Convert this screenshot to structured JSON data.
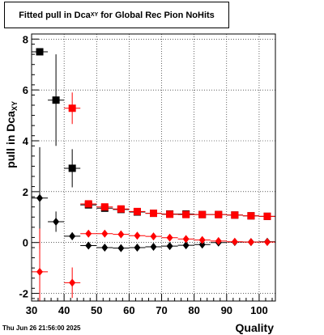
{
  "chart_data": {
    "type": "scatter",
    "title_main": "Fitted pull in Dca",
    "title_sub": "XY",
    "title_rest": "for Global Rec Pion NoHits",
    "xlabel": "Quality",
    "ylabel_main": "pull in Dca",
    "ylabel_sub": "XY",
    "xlim": [
      30,
      105
    ],
    "ylim": [
      -2.3,
      8.2
    ],
    "grid": true,
    "x_ticks": [
      30,
      40,
      50,
      60,
      70,
      80,
      90,
      100
    ],
    "y_ticks": [
      -2,
      0,
      2,
      4,
      6,
      8
    ],
    "series": [
      {
        "marker": "square",
        "color": "#000000",
        "points": [
          {
            "x": 32.5,
            "y": 7.5,
            "yerr": 0.0,
            "xerr": 2.5
          },
          {
            "x": 37.5,
            "y": 5.6,
            "yerr": 1.8,
            "xerr": 2.5
          },
          {
            "x": 42.5,
            "y": 2.92,
            "yerr": 0.75,
            "xerr": 2.5
          },
          {
            "x": 47.5,
            "y": 1.48,
            "yerr": 0.12,
            "xerr": 2.5
          },
          {
            "x": 52.5,
            "y": 1.35,
            "yerr": 0.08,
            "xerr": 2.5
          },
          {
            "x": 57.5,
            "y": 1.3,
            "yerr": 0.06,
            "xerr": 2.5
          },
          {
            "x": 62.5,
            "y": 1.2,
            "yerr": 0.05,
            "xerr": 2.5
          },
          {
            "x": 67.5,
            "y": 1.15,
            "yerr": 0.05,
            "xerr": 2.5
          },
          {
            "x": 72.5,
            "y": 1.12,
            "yerr": 0.05,
            "xerr": 2.5
          },
          {
            "x": 77.5,
            "y": 1.12,
            "yerr": 0.05,
            "xerr": 2.5
          },
          {
            "x": 82.5,
            "y": 1.1,
            "yerr": 0.05,
            "xerr": 2.5
          },
          {
            "x": 87.5,
            "y": 1.1,
            "yerr": 0.05,
            "xerr": 2.5
          },
          {
            "x": 92.5,
            "y": 1.08,
            "yerr": 0.05,
            "xerr": 2.5
          },
          {
            "x": 97.5,
            "y": 1.05,
            "yerr": 0.05,
            "xerr": 2.5
          },
          {
            "x": 102.5,
            "y": 1.03,
            "yerr": 0.05,
            "xerr": 2.5
          }
        ]
      },
      {
        "marker": "square",
        "color": "#ff0000",
        "points": [
          {
            "x": 42.5,
            "y": 5.28,
            "yerr": 0.62,
            "xerr": 2.5
          },
          {
            "x": 47.5,
            "y": 1.52,
            "yerr": 0.1,
            "xerr": 2.5
          },
          {
            "x": 52.5,
            "y": 1.4,
            "yerr": 0.08,
            "xerr": 2.5
          },
          {
            "x": 57.5,
            "y": 1.32,
            "yerr": 0.06,
            "xerr": 2.5
          },
          {
            "x": 62.5,
            "y": 1.22,
            "yerr": 0.05,
            "xerr": 2.5
          },
          {
            "x": 67.5,
            "y": 1.15,
            "yerr": 0.05,
            "xerr": 2.5
          },
          {
            "x": 72.5,
            "y": 1.11,
            "yerr": 0.05,
            "xerr": 2.5
          },
          {
            "x": 77.5,
            "y": 1.1,
            "yerr": 0.05,
            "xerr": 2.5
          },
          {
            "x": 82.5,
            "y": 1.1,
            "yerr": 0.05,
            "xerr": 2.5
          },
          {
            "x": 87.5,
            "y": 1.1,
            "yerr": 0.05,
            "xerr": 2.5
          },
          {
            "x": 92.5,
            "y": 1.08,
            "yerr": 0.05,
            "xerr": 2.5
          },
          {
            "x": 97.5,
            "y": 1.05,
            "yerr": 0.05,
            "xerr": 2.5
          },
          {
            "x": 102.5,
            "y": 1.03,
            "yerr": 0.05,
            "xerr": 2.5
          }
        ]
      },
      {
        "marker": "diamond",
        "color": "#000000",
        "points": [
          {
            "x": 32.5,
            "y": 1.75,
            "yerr": 2.0,
            "xerr": 2.5
          },
          {
            "x": 37.5,
            "y": 0.82,
            "yerr": 0.4,
            "xerr": 2.5
          },
          {
            "x": 42.5,
            "y": 0.25,
            "yerr": 0.15,
            "xerr": 2.5
          },
          {
            "x": 47.5,
            "y": -0.12,
            "yerr": 0.04,
            "xerr": 2.5
          },
          {
            "x": 52.5,
            "y": -0.2,
            "yerr": 0.04,
            "xerr": 2.5
          },
          {
            "x": 57.5,
            "y": -0.22,
            "yerr": 0.03,
            "xerr": 2.5
          },
          {
            "x": 62.5,
            "y": -0.2,
            "yerr": 0.03,
            "xerr": 2.5
          },
          {
            "x": 67.5,
            "y": -0.17,
            "yerr": 0.03,
            "xerr": 2.5
          },
          {
            "x": 72.5,
            "y": -0.14,
            "yerr": 0.03,
            "xerr": 2.5
          },
          {
            "x": 77.5,
            "y": -0.11,
            "yerr": 0.03,
            "xerr": 2.5
          },
          {
            "x": 82.5,
            "y": -0.08,
            "yerr": 0.03,
            "xerr": 2.5
          },
          {
            "x": 87.5,
            "y": 0.0,
            "yerr": 0.03,
            "xerr": 2.5
          },
          {
            "x": 92.5,
            "y": 0.02,
            "yerr": 0.03,
            "xerr": 2.5
          },
          {
            "x": 97.5,
            "y": 0.02,
            "yerr": 0.03,
            "xerr": 2.5
          },
          {
            "x": 102.5,
            "y": 0.03,
            "yerr": 0.03,
            "xerr": 2.5
          }
        ]
      },
      {
        "marker": "diamond",
        "color": "#ff0000",
        "points": [
          {
            "x": 32.5,
            "y": -1.15,
            "yerr": 1.7,
            "xerr": 2.5
          },
          {
            "x": 42.5,
            "y": -1.58,
            "yerr": 0.6,
            "xerr": 2.5
          },
          {
            "x": 47.5,
            "y": 0.35,
            "yerr": 0.06,
            "xerr": 2.5
          },
          {
            "x": 52.5,
            "y": 0.35,
            "yerr": 0.05,
            "xerr": 2.5
          },
          {
            "x": 57.5,
            "y": 0.32,
            "yerr": 0.04,
            "xerr": 2.5
          },
          {
            "x": 62.5,
            "y": 0.27,
            "yerr": 0.04,
            "xerr": 2.5
          },
          {
            "x": 67.5,
            "y": 0.24,
            "yerr": 0.04,
            "xerr": 2.5
          },
          {
            "x": 72.5,
            "y": 0.19,
            "yerr": 0.04,
            "xerr": 2.5
          },
          {
            "x": 77.5,
            "y": 0.14,
            "yerr": 0.04,
            "xerr": 2.5
          },
          {
            "x": 82.5,
            "y": 0.1,
            "yerr": 0.04,
            "xerr": 2.5
          },
          {
            "x": 87.5,
            "y": 0.06,
            "yerr": 0.04,
            "xerr": 2.5
          },
          {
            "x": 92.5,
            "y": 0.03,
            "yerr": 0.04,
            "xerr": 2.5
          },
          {
            "x": 97.5,
            "y": 0.02,
            "yerr": 0.04,
            "xerr": 2.5
          },
          {
            "x": 102.5,
            "y": 0.02,
            "yerr": 0.04,
            "xerr": 2.5
          }
        ]
      }
    ]
  },
  "footer": {
    "date": "Thu Jun 26 21:56:00 2025"
  }
}
